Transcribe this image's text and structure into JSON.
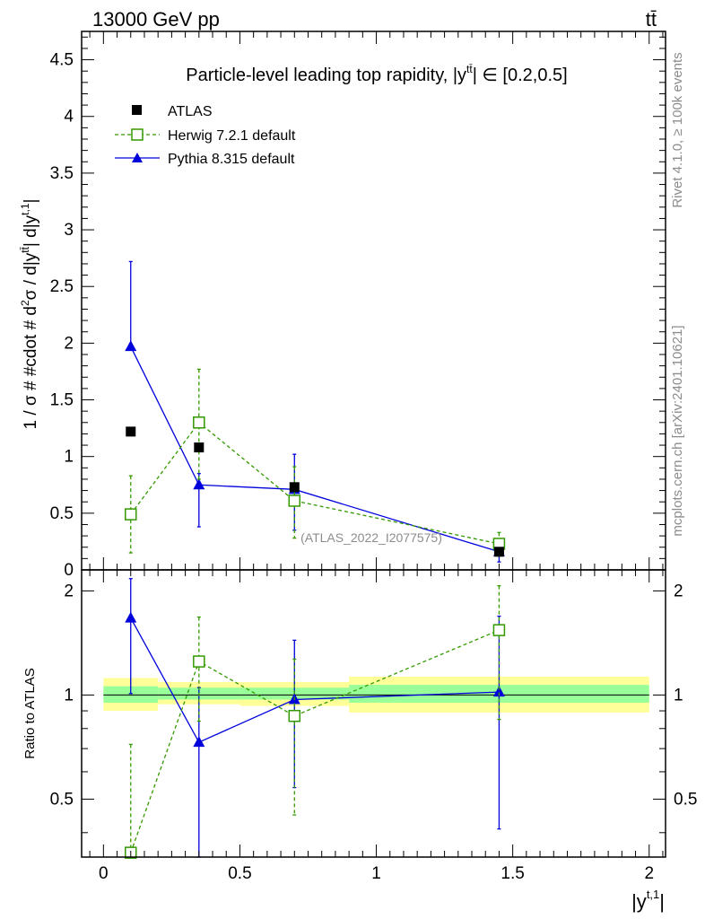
{
  "header": {
    "energy_label": "13000 GeV pp",
    "process_label": "tt̄"
  },
  "side_labels": {
    "rivet": "Rivet 4.1.0, ≥ 100k events",
    "mcplots": "mcplots.cern.ch [arXiv:2401.10621]"
  },
  "chart_data": [
    {
      "type": "scatter",
      "panel": "main",
      "title": "Particle-level leading top rapidity, |y^tt̄| ∈ [0.2,0.5]",
      "title_parts": {
        "prefix": "Particle-level leading top rapidity, |",
        "symbol": "y",
        "superscript": "tt̄",
        "suffix": "| ∈ [0.2,0.5]"
      },
      "ylabel": "1 / σ # #cdot # d²σ / d|y^tt̄| d|y^t,1|",
      "ylabel_parts": {
        "a": "1 / σ # #cdot # d",
        "sup2": "2",
        "b": "σ / d|y",
        "sup_tt": "tt̄",
        "c": "| d|y",
        "sup_t1": "t,1",
        "d": "|"
      },
      "watermark": "(ATLAS_2022_I2077575)",
      "xlim": [
        -0.08,
        2.06
      ],
      "ylim": [
        0,
        4.75
      ],
      "yticks": [
        "0",
        "0.5",
        "1",
        "1.5",
        "2",
        "2.5",
        "3",
        "3.5",
        "4",
        "4.5"
      ],
      "series": [
        {
          "name": "ATLAS",
          "color": "#000000",
          "marker": "filled-square",
          "x": [
            0.1,
            0.35,
            0.7,
            1.45
          ],
          "y": [
            1.22,
            1.08,
            0.73,
            0.16
          ],
          "err_low": [
            0.0,
            0.0,
            0.0,
            0.0
          ],
          "err_high": [
            0.0,
            0.0,
            0.0,
            0.0
          ]
        },
        {
          "name": "Herwig 7.2.1 default",
          "color": "#339900",
          "marker": "open-square",
          "dashed": true,
          "x": [
            0.1,
            0.35,
            0.7,
            1.45
          ],
          "y": [
            0.49,
            1.3,
            0.61,
            0.23
          ],
          "err_low": [
            0.34,
            0.5,
            0.33,
            0.11
          ],
          "err_high": [
            0.34,
            0.47,
            0.3,
            0.1
          ]
        },
        {
          "name": "Pythia 8.315 default",
          "color": "#0000dd",
          "marker": "filled-triangle",
          "dashed": false,
          "x": [
            0.1,
            0.35,
            0.7,
            1.45
          ],
          "y": [
            1.97,
            0.75,
            0.71,
            0.16
          ],
          "err_low": [
            0.0,
            0.37,
            0.36,
            0.09
          ],
          "err_high": [
            0.75,
            0.1,
            0.31,
            0.05
          ]
        }
      ]
    },
    {
      "type": "scatter",
      "panel": "ratio",
      "ylabel": "Ratio to ATLAS",
      "xlabel": "|y^t,1|",
      "xlabel_parts": {
        "a": "|y",
        "sup": "t,1",
        "b": "|"
      },
      "xlim": [
        -0.08,
        2.06
      ],
      "ylim": [
        0.34,
        2.3
      ],
      "xticks": [
        "0",
        "0.5",
        "1",
        "1.5",
        "2"
      ],
      "yticks": [
        "0.5",
        "1",
        "2"
      ],
      "bands": [
        {
          "x0": 0.0,
          "x1": 0.2,
          "yellow": [
            0.9,
            1.12
          ],
          "green": [
            0.95,
            1.06
          ]
        },
        {
          "x0": 0.2,
          "x1": 0.5,
          "yellow": [
            0.94,
            1.09
          ],
          "green": [
            0.97,
            1.05
          ]
        },
        {
          "x0": 0.5,
          "x1": 0.9,
          "yellow": [
            0.93,
            1.09
          ],
          "green": [
            0.97,
            1.05
          ]
        },
        {
          "x0": 0.9,
          "x1": 2.0,
          "yellow": [
            0.89,
            1.13
          ],
          "green": [
            0.95,
            1.07
          ]
        }
      ],
      "series": [
        {
          "name": "Herwig 7.2.1 default",
          "color": "#339900",
          "marker": "open-square",
          "dashed": true,
          "x": [
            0.1,
            0.35,
            0.7,
            1.45
          ],
          "y": [
            0.35,
            1.25,
            0.87,
            1.54
          ],
          "err_low": [
            0.0,
            0.41,
            0.42,
            0.69
          ],
          "err_high": [
            0.37,
            0.43,
            0.4,
            0.53
          ]
        },
        {
          "name": "Pythia 8.315 default",
          "color": "#0000dd",
          "marker": "filled-triangle",
          "dashed": false,
          "x": [
            0.1,
            0.35,
            0.7,
            1.45
          ],
          "y": [
            1.67,
            0.73,
            0.97,
            1.02
          ],
          "err_low": [
            0.66,
            0.39,
            0.43,
            0.61
          ],
          "err_high": [
            0.5,
            0.32,
            0.47,
            0.67
          ]
        }
      ]
    }
  ]
}
